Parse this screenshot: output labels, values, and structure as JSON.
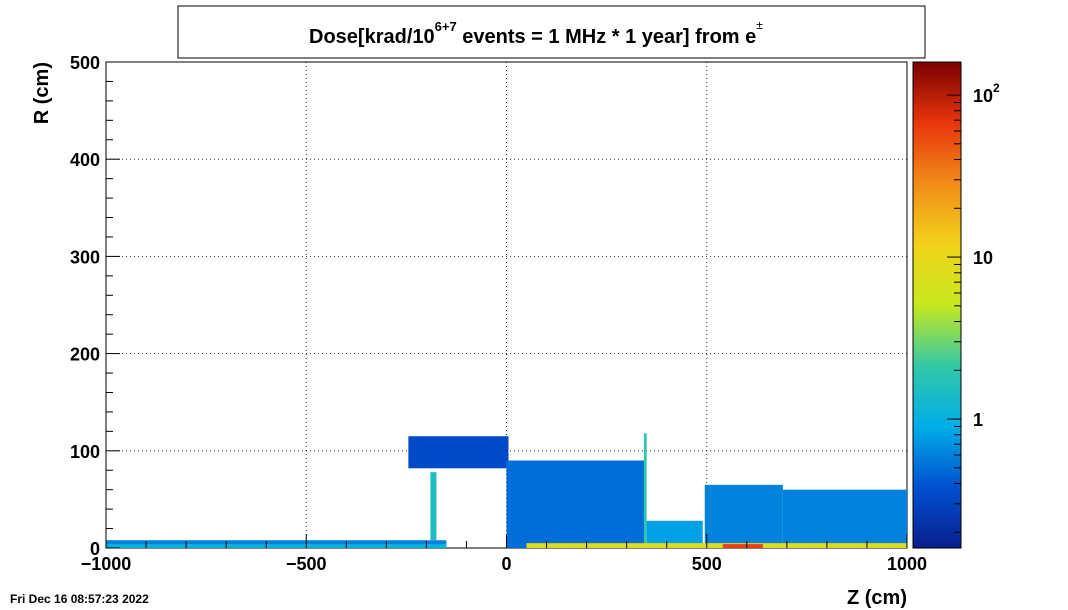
{
  "chart_data": {
    "type": "heatmap",
    "title": {
      "prefix": "Dose[krad/10",
      "exponent": "6+7",
      "middle": " events = 1 MHz * 1 year] from e",
      "particle_superscript": "±"
    },
    "xlabel": "Z (cm)",
    "ylabel": "R (cm)",
    "xlim": [
      -1000,
      1000
    ],
    "ylim": [
      0,
      500
    ],
    "x_ticks": [
      -1000,
      -500,
      0,
      500,
      1000
    ],
    "x_tick_labels": [
      "−1000",
      "−500",
      "0",
      "500",
      "1000"
    ],
    "y_ticks": [
      0,
      100,
      200,
      300,
      400,
      500
    ],
    "y_tick_labels": [
      "0",
      "100",
      "200",
      "300",
      "400",
      "500"
    ],
    "grid": true,
    "colorbar": {
      "scale": "log",
      "min": 0.16,
      "max": 160,
      "palette": [
        "#0a1f8f",
        "#0050d0",
        "#00aee8",
        "#33c8a6",
        "#c6e81e",
        "#f2d21a",
        "#f08c17",
        "#e8350c",
        "#7a0000"
      ],
      "ticks": [
        {
          "value": 1,
          "base": "1",
          "exp": ""
        },
        {
          "value": 10,
          "base": "10",
          "exp": ""
        },
        {
          "value": 100,
          "base": "10",
          "exp": "2"
        }
      ]
    },
    "regions": [
      {
        "name": "beampipe-neg",
        "z": [
          -1000,
          -150
        ],
        "r": [
          0,
          8
        ],
        "dose": 0.6
      },
      {
        "name": "beampipe-neg-lower",
        "z": [
          -1000,
          -150
        ],
        "r": [
          0,
          4
        ],
        "dose": 1.0
      },
      {
        "name": "upper-lobe",
        "z": [
          -245,
          5
        ],
        "r": [
          82,
          115
        ],
        "dose": 0.35
      },
      {
        "name": "pillar",
        "z": [
          -190,
          -175
        ],
        "r": [
          8,
          78
        ],
        "dose": 1.5
      },
      {
        "name": "central-cone",
        "z": [
          0,
          345
        ],
        "r": [
          0,
          90
        ],
        "dose": 0.5
      },
      {
        "name": "spike",
        "z": [
          343,
          350
        ],
        "r": [
          0,
          118
        ],
        "dose": 2.0
      },
      {
        "name": "mid-shelf",
        "z": [
          350,
          490
        ],
        "r": [
          0,
          28
        ],
        "dose": 0.8
      },
      {
        "name": "forward-block",
        "z": [
          495,
          690
        ],
        "r": [
          0,
          65
        ],
        "dose": 0.6
      },
      {
        "name": "forward-tail",
        "z": [
          690,
          1000
        ],
        "r": [
          0,
          60
        ],
        "dose": 0.6
      },
      {
        "name": "hot-core",
        "z": [
          50,
          1000
        ],
        "r": [
          0,
          5
        ],
        "dose": 8.0
      },
      {
        "name": "hot-spot",
        "z": [
          540,
          640
        ],
        "r": [
          0,
          4
        ],
        "dose": 60
      }
    ]
  },
  "footer": {
    "timestamp": "Fri Dec 16 08:57:23 2022"
  }
}
